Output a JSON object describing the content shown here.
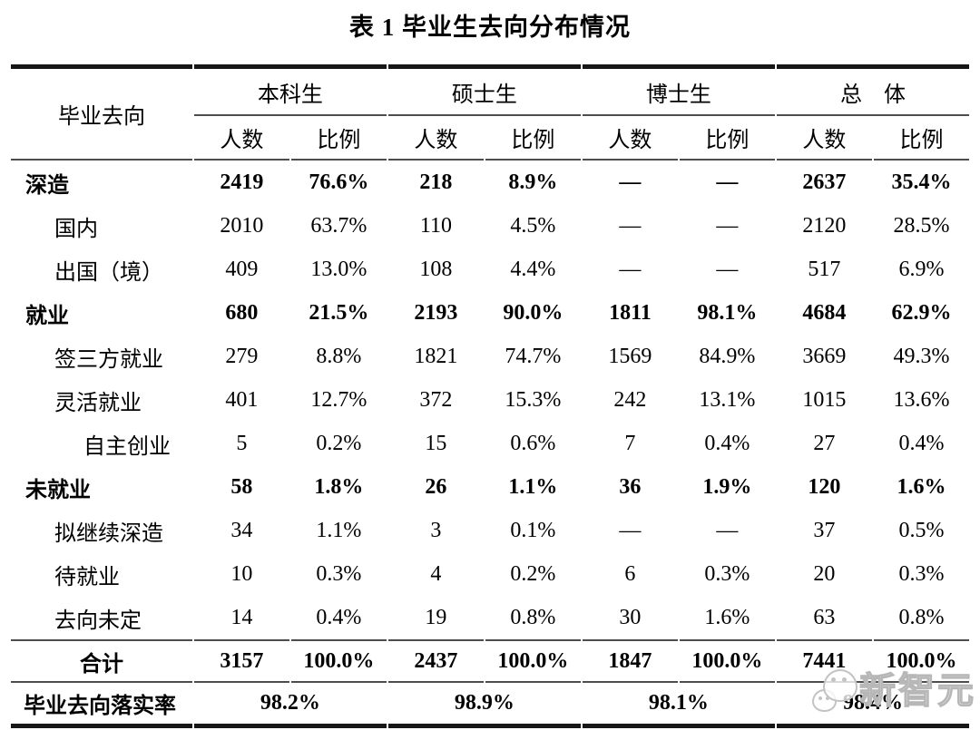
{
  "page": {
    "title": "表 1 毕业生去向分布情况"
  },
  "table": {
    "row_header": "毕业去向",
    "groups": [
      {
        "label": "本科生",
        "sub": [
          "人数",
          "比例"
        ]
      },
      {
        "label": "硕士生",
        "sub": [
          "人数",
          "比例"
        ]
      },
      {
        "label": "博士生",
        "sub": [
          "人数",
          "比例"
        ]
      },
      {
        "label": "总　体",
        "sub": [
          "人数",
          "比例"
        ]
      }
    ],
    "rows": [
      {
        "label": "深造",
        "indent": 0,
        "bold": true,
        "values": [
          "2419",
          "76.6%",
          "218",
          "8.9%",
          "—",
          "—",
          "2637",
          "35.4%"
        ]
      },
      {
        "label": "国内",
        "indent": 1,
        "bold": false,
        "values": [
          "2010",
          "63.7%",
          "110",
          "4.5%",
          "—",
          "—",
          "2120",
          "28.5%"
        ]
      },
      {
        "label": "出国（境）",
        "indent": 1,
        "bold": false,
        "values": [
          "409",
          "13.0%",
          "108",
          "4.4%",
          "—",
          "—",
          "517",
          "6.9%"
        ]
      },
      {
        "label": "就业",
        "indent": 0,
        "bold": true,
        "values": [
          "680",
          "21.5%",
          "2193",
          "90.0%",
          "1811",
          "98.1%",
          "4684",
          "62.9%"
        ]
      },
      {
        "label": "签三方就业",
        "indent": 1,
        "bold": false,
        "values": [
          "279",
          "8.8%",
          "1821",
          "74.7%",
          "1569",
          "84.9%",
          "3669",
          "49.3%"
        ]
      },
      {
        "label": "灵活就业",
        "indent": 1,
        "bold": false,
        "values": [
          "401",
          "12.7%",
          "372",
          "15.3%",
          "242",
          "13.1%",
          "1015",
          "13.6%"
        ]
      },
      {
        "label": "自主创业",
        "indent": 2,
        "bold": false,
        "values": [
          "5",
          "0.2%",
          "15",
          "0.6%",
          "7",
          "0.4%",
          "27",
          "0.4%"
        ]
      },
      {
        "label": "未就业",
        "indent": 0,
        "bold": true,
        "values": [
          "58",
          "1.8%",
          "26",
          "1.1%",
          "36",
          "1.9%",
          "120",
          "1.6%"
        ]
      },
      {
        "label": "拟继续深造",
        "indent": 1,
        "bold": false,
        "values": [
          "34",
          "1.1%",
          "3",
          "0.1%",
          "—",
          "—",
          "37",
          "0.5%"
        ]
      },
      {
        "label": "待就业",
        "indent": 1,
        "bold": false,
        "values": [
          "10",
          "0.3%",
          "4",
          "0.2%",
          "6",
          "0.3%",
          "20",
          "0.3%"
        ]
      },
      {
        "label": "去向未定",
        "indent": 1,
        "bold": false,
        "values": [
          "14",
          "0.4%",
          "19",
          "0.8%",
          "30",
          "1.6%",
          "63",
          "0.8%"
        ]
      }
    ],
    "total_row": {
      "label": "合计",
      "values": [
        "3157",
        "100.0%",
        "2437",
        "100.0%",
        "1847",
        "100.0%",
        "7441",
        "100.0%"
      ]
    },
    "rate_row": {
      "label": "毕业去向落实率",
      "values": [
        "98.2%",
        "98.9%",
        "98.1%",
        "98.4%"
      ]
    }
  },
  "watermark": {
    "text": "新智元",
    "logo": "chat-bubbles-face-icon"
  },
  "colors": {
    "thick_rule": "#161616",
    "thin_rule": "#4d4d4d",
    "text": "#000000",
    "watermark_gray": "#c3c3c3",
    "background": "#ffffff"
  }
}
